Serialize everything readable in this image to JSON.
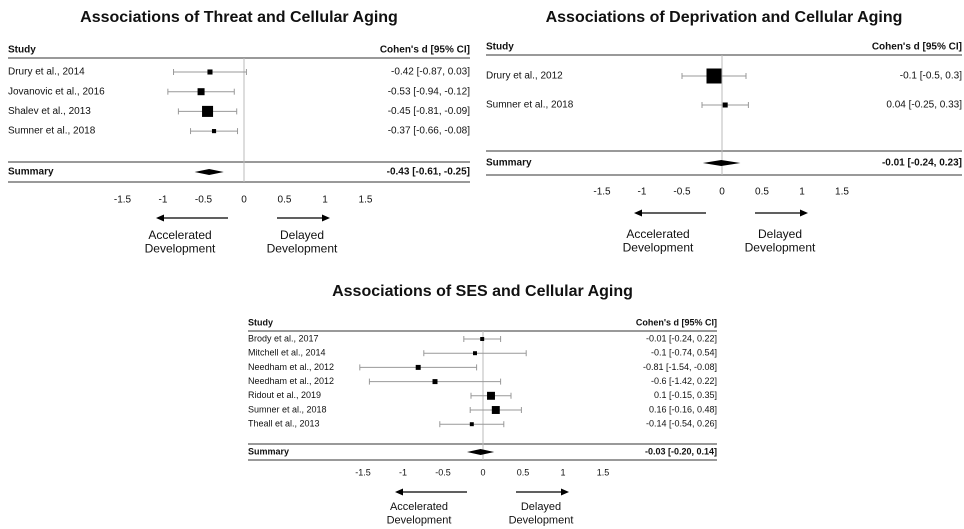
{
  "chart_data": [
    {
      "type": "forest",
      "title": "Associations of Threat and Cellular Aging",
      "column_headers": [
        "Study",
        "Cohen's d [95% CI]"
      ],
      "categories": [
        "Drury et al., 2014",
        "Jovanovic et al., 2016",
        "Shalev et al., 2013",
        "Sumner et al., 2018"
      ],
      "values": [
        -0.42,
        -0.53,
        -0.45,
        -0.37
      ],
      "ci_low": [
        -0.87,
        -0.94,
        -0.81,
        -0.66
      ],
      "ci_high": [
        0.03,
        -0.12,
        -0.09,
        -0.08
      ],
      "weights": [
        12,
        23,
        57,
        8
      ],
      "value_labels": [
        "-0.42 [-0.87, 0.03]",
        "-0.53 [-0.94, -0.12]",
        "-0.45 [-0.81, -0.09]",
        "-0.37 [-0.66, -0.08]"
      ],
      "summary": {
        "name": "Summary",
        "value": -0.43,
        "ci_low": -0.61,
        "ci_high": -0.25,
        "value_label": "-0.43 [-0.61, -0.25]"
      },
      "xlim": [
        -2,
        2
      ],
      "xticks": [
        -1.5,
        -1,
        -0.5,
        0,
        0.5,
        1,
        1.5
      ],
      "left_label": [
        "Accelerated",
        "Development"
      ],
      "right_label": [
        "Delayed",
        "Development"
      ]
    },
    {
      "type": "forest",
      "title": "Associations of Deprivation and Cellular Aging",
      "column_headers": [
        "Study",
        "Cohen's d [95% CI]"
      ],
      "categories": [
        "Drury et al., 2012",
        "Sumner et al., 2018"
      ],
      "values": [
        -0.1,
        0.04
      ],
      "ci_low": [
        -0.5,
        -0.25
      ],
      "ci_high": [
        0.3,
        0.33
      ],
      "weights": [
        90,
        10
      ],
      "value_labels": [
        "-0.1 [-0.5, 0.3]",
        "0.04 [-0.25, 0.33]"
      ],
      "summary": {
        "name": "Summary",
        "value": -0.01,
        "ci_low": -0.24,
        "ci_high": 0.23,
        "value_label": "-0.01 [-0.24, 0.23]"
      },
      "xlim": [
        -2,
        2
      ],
      "xticks": [
        -1.5,
        -1,
        -0.5,
        0,
        0.5,
        1,
        1.5
      ],
      "left_label": [
        "Accelerated",
        "Development"
      ],
      "right_label": [
        "Delayed",
        "Development"
      ]
    },
    {
      "type": "forest",
      "title": "Associations of SES and Cellular Aging",
      "column_headers": [
        "Study",
        "Cohen's d [95% CI]"
      ],
      "categories": [
        "Brody et al., 2017",
        "Mitchell et al., 2014",
        "Needham et al., 2012",
        "Needham et al., 2012",
        "Ridout et al., 2019",
        "Sumner et al., 2018",
        "Theall et al., 2013"
      ],
      "values": [
        -0.01,
        -0.1,
        -0.81,
        -0.6,
        0.1,
        0.16,
        -0.14
      ],
      "ci_low": [
        -0.24,
        -0.74,
        -1.54,
        -1.42,
        -0.15,
        -0.16,
        -0.54
      ],
      "ci_high": [
        0.22,
        0.54,
        -0.08,
        0.22,
        0.35,
        0.48,
        0.26
      ],
      "weights": [
        7,
        7,
        11,
        11,
        28,
        28,
        7
      ],
      "value_labels": [
        "-0.01 [-0.24, 0.22]",
        "-0.1 [-0.74, 0.54]",
        "-0.81 [-1.54, -0.08]",
        "-0.6 [-1.42, 0.22]",
        "0.1 [-0.15, 0.35]",
        "0.16 [-0.16, 0.48]",
        "-0.14 [-0.54, 0.26]"
      ],
      "summary": {
        "name": "Summary",
        "value": -0.03,
        "ci_low": -0.2,
        "ci_high": 0.14,
        "value_label": "-0.03 [-0.20, 0.14]"
      },
      "xlim": [
        -2,
        2
      ],
      "xticks": [
        -1.5,
        -1,
        -0.5,
        0,
        0.5,
        1,
        1.5
      ],
      "left_label": [
        "Accelerated",
        "Development"
      ],
      "right_label": [
        "Delayed",
        "Development"
      ]
    }
  ]
}
